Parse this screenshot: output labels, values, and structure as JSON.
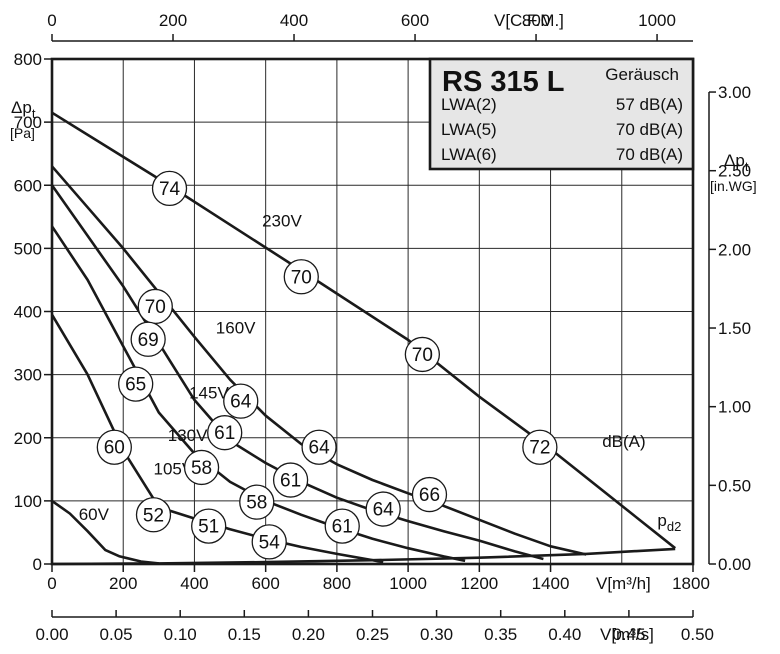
{
  "chart_data": {
    "type": "line",
    "title": "RS 315 L",
    "x_primary": {
      "label": "V[m³/h]",
      "range": [
        0,
        1800
      ],
      "ticks": [
        0,
        200,
        400,
        600,
        800,
        1000,
        1200,
        1400,
        1800
      ]
    },
    "x_top": {
      "label": "V[C.F.M.]",
      "range": [
        0,
        1059.4
      ],
      "ticks": [
        0,
        200,
        400,
        600,
        800,
        1000
      ]
    },
    "x_bottom": {
      "label": "V[m³/s]",
      "range": [
        0,
        0.5
      ],
      "ticks": [
        "0.00",
        "0.05",
        "0.10",
        "0.15",
        "0.20",
        "0.25",
        "0.30",
        "0.35",
        "0.40",
        "0.45",
        "0.50"
      ]
    },
    "y_left": {
      "label_main": "Δpt",
      "label_sub": "t",
      "unit": "[Pa]",
      "range": [
        0,
        800
      ],
      "ticks": [
        0,
        100,
        200,
        300,
        400,
        500,
        600,
        700,
        800
      ]
    },
    "y_right": {
      "label_main": "Δpt",
      "label_sub": "t",
      "unit": "[in.WG]",
      "range": [
        0,
        3.21
      ],
      "ticks": [
        "0.00",
        "0.50",
        "1.00",
        "1.50",
        "2.00",
        "2.50",
        "3.00"
      ]
    },
    "grid": true,
    "series": [
      {
        "name": "230V",
        "x": [
          0,
          300,
          700,
          1000,
          1200,
          1400,
          1750
        ],
        "y": [
          715,
          610,
          465,
          355,
          265,
          182,
          25
        ]
      },
      {
        "name": "160V",
        "x": [
          0,
          100,
          200,
          300,
          400,
          500,
          600,
          700,
          800,
          900,
          1000,
          1100,
          1200,
          1300,
          1400,
          1500
        ],
        "y": [
          630,
          565,
          500,
          430,
          360,
          292,
          235,
          190,
          158,
          133,
          112,
          92,
          70,
          48,
          28,
          15
        ]
      },
      {
        "name": "145V",
        "x": [
          0,
          100,
          200,
          300,
          400,
          500,
          600,
          700,
          800,
          900,
          1000,
          1100,
          1200,
          1300,
          1380
        ],
        "y": [
          600,
          520,
          440,
          350,
          260,
          195,
          160,
          130,
          105,
          85,
          68,
          52,
          37,
          20,
          8
        ]
      },
      {
        "name": "130V",
        "x": [
          0,
          100,
          200,
          300,
          400,
          500,
          600,
          700,
          800,
          900,
          1000,
          1100,
          1160
        ],
        "y": [
          535,
          450,
          345,
          240,
          175,
          130,
          100,
          78,
          58,
          40,
          25,
          12,
          5
        ]
      },
      {
        "name": "105V",
        "x": [
          0,
          100,
          200,
          300,
          400,
          500,
          600,
          700,
          800,
          900,
          930
        ],
        "y": [
          395,
          300,
          180,
          90,
          72,
          55,
          40,
          27,
          16,
          6,
          3
        ]
      },
      {
        "name": "60V",
        "x": [
          0,
          50,
          100,
          150,
          190,
          250,
          300
        ],
        "y": [
          100,
          80,
          52,
          22,
          12,
          4,
          1
        ]
      },
      {
        "name": "pd2",
        "x": [
          0,
          300,
          600,
          900,
          1200,
          1500,
          1750
        ],
        "y": [
          0,
          1,
          3,
          6,
          10,
          16,
          24
        ]
      }
    ],
    "annotations": [
      {
        "text": "74",
        "x": 330,
        "y": 595
      },
      {
        "text": "70",
        "x": 700,
        "y": 455
      },
      {
        "text": "70",
        "x": 1040,
        "y": 332
      },
      {
        "text": "72",
        "x": 1370,
        "y": 185
      },
      {
        "text": "70",
        "x": 290,
        "y": 408
      },
      {
        "text": "69",
        "x": 270,
        "y": 356
      },
      {
        "text": "65",
        "x": 235,
        "y": 285
      },
      {
        "text": "60",
        "x": 175,
        "y": 185
      },
      {
        "text": "64",
        "x": 530,
        "y": 258
      },
      {
        "text": "61",
        "x": 485,
        "y": 208
      },
      {
        "text": "58",
        "x": 420,
        "y": 153
      },
      {
        "text": "52",
        "x": 285,
        "y": 78
      },
      {
        "text": "64",
        "x": 750,
        "y": 185
      },
      {
        "text": "61",
        "x": 670,
        "y": 133
      },
      {
        "text": "58",
        "x": 575,
        "y": 98
      },
      {
        "text": "51",
        "x": 440,
        "y": 60
      },
      {
        "text": "66",
        "x": 1060,
        "y": 110
      },
      {
        "text": "64",
        "x": 930,
        "y": 87
      },
      {
        "text": "61",
        "x": 815,
        "y": 60
      },
      {
        "text": "54",
        "x": 610,
        "y": 35
      }
    ],
    "curve_labels": [
      {
        "text": "230V",
        "x": 590,
        "y": 535
      },
      {
        "text": "160V",
        "x": 460,
        "y": 365
      },
      {
        "text": "145V",
        "x": 385,
        "y": 262
      },
      {
        "text": "130V",
        "x": 325,
        "y": 195
      },
      {
        "text": "105V",
        "x": 285,
        "y": 142
      },
      {
        "text": "60V",
        "x": 75,
        "y": 70
      },
      {
        "text": "dB(A)",
        "x": 1545,
        "y": 185
      },
      {
        "text": "pd2",
        "x": 1700,
        "y": 60,
        "main": "p",
        "sub": "d2"
      }
    ]
  },
  "noise_box": {
    "title": "RS 315 L",
    "header": "Geräusch",
    "rows": [
      {
        "label": "LWA(2)",
        "value": "57 dB(A)"
      },
      {
        "label": "LWA(5)",
        "value": "70 dB(A)"
      },
      {
        "label": "LWA(6)",
        "value": "70 dB(A)"
      }
    ]
  }
}
